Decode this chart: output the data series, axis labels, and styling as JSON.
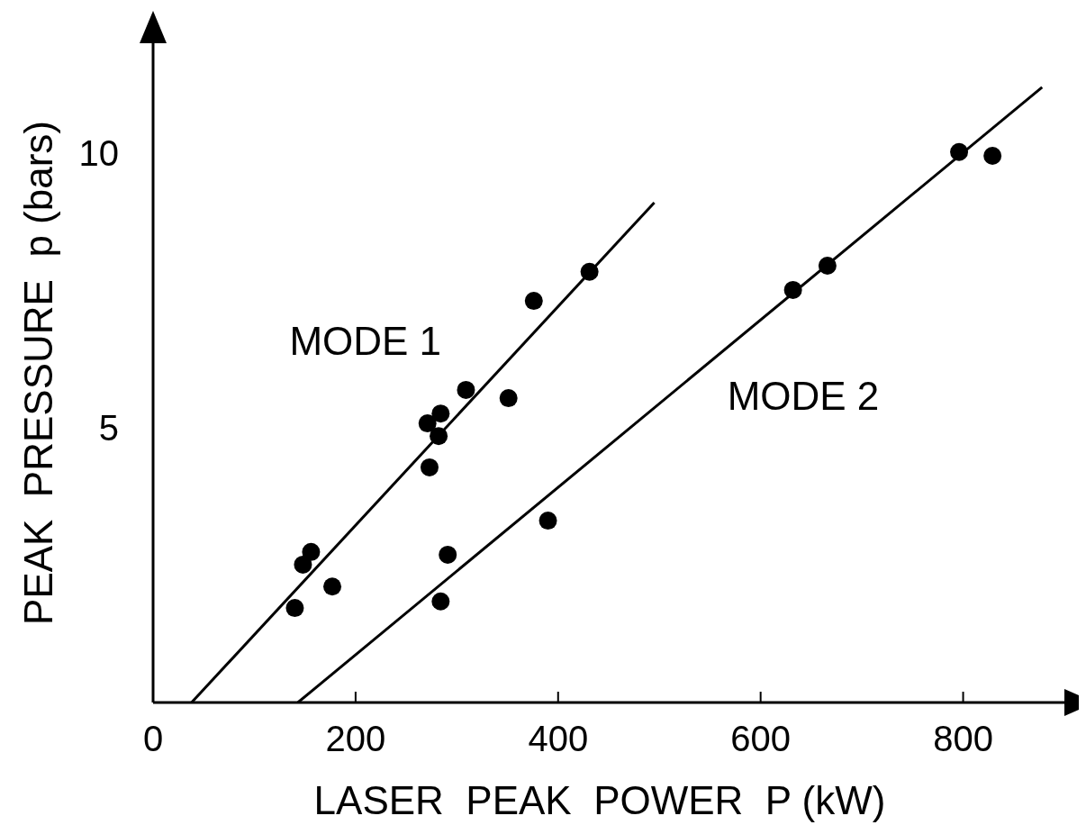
{
  "chart_data": {
    "type": "scatter",
    "xlabel": "LASER  PEAK  POWER  P (kW)",
    "ylabel": "PEAK  PRESSURE  p (bars)",
    "xlim": [
      0,
      900
    ],
    "ylim": [
      0,
      12
    ],
    "xticks": [
      0,
      200,
      400,
      600,
      800
    ],
    "yticks": [
      5,
      10
    ],
    "grid": false,
    "legend": false,
    "series": [
      {
        "name": "MODE 1",
        "color": "#000000",
        "marker": "circle",
        "x": [
          140,
          148,
          156,
          177,
          273,
          271,
          282,
          284,
          309,
          351,
          376,
          431
        ],
        "values": [
          1.72,
          2.51,
          2.74,
          2.11,
          4.28,
          5.08,
          4.85,
          5.26,
          5.69,
          5.54,
          7.31,
          7.84
        ]
      },
      {
        "name": "MODE 2",
        "color": "#000000",
        "marker": "circle",
        "x": [
          284,
          291,
          390,
          632,
          666,
          796,
          829
        ],
        "values": [
          1.84,
          2.69,
          3.31,
          7.51,
          7.95,
          10.02,
          9.95
        ]
      },
      {
        "type": "line",
        "color": "#000000",
        "marker": "none",
        "line_style": "solid",
        "x": [
          38,
          495
        ],
        "values": [
          0,
          9.1
        ]
      },
      {
        "type": "line",
        "color": "#000000",
        "marker": "none",
        "line_style": "solid",
        "x": [
          143,
          878
        ],
        "values": [
          0,
          11.2
        ]
      }
    ]
  }
}
